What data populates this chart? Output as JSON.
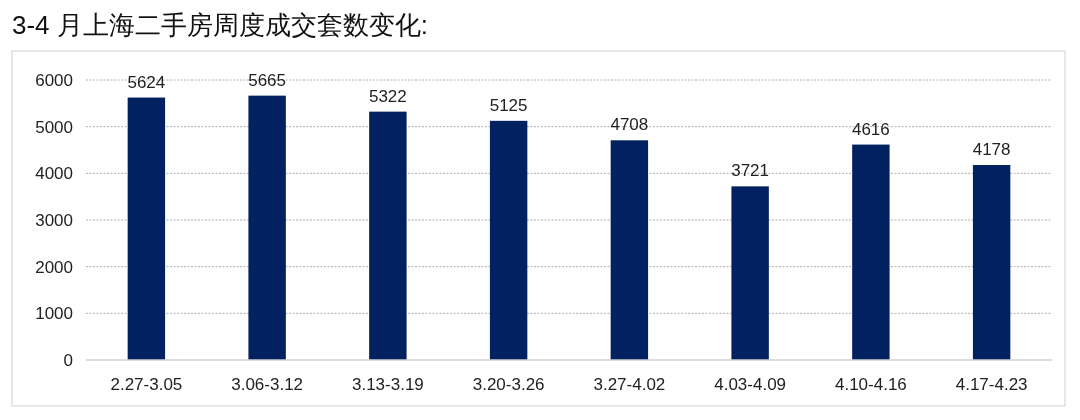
{
  "chart_data": {
    "type": "bar",
    "title": "3-4 月上海二手房周度成交套数变化:",
    "categories": [
      "2.27-3.05",
      "3.06-3.12",
      "3.13-3.19",
      "3.20-3.26",
      "3.27-4.02",
      "4.03-4.09",
      "4.10-4.16",
      "4.17-4.23"
    ],
    "values": [
      5624,
      5665,
      5322,
      5125,
      4708,
      3721,
      4616,
      4178
    ],
    "color": "#022160",
    "ylim": [
      0,
      6000
    ],
    "yticks": [
      0,
      1000,
      2000,
      3000,
      4000,
      5000,
      6000
    ],
    "grid": "y",
    "data_labels": true
  }
}
